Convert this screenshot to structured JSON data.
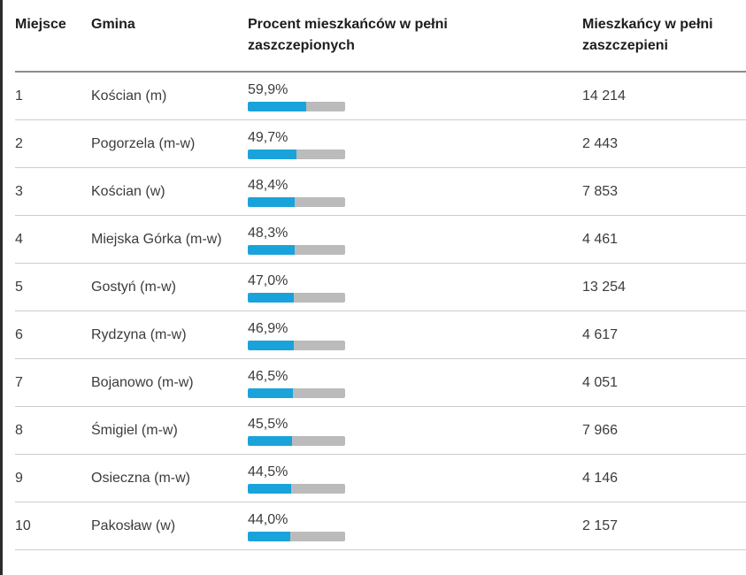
{
  "colors": {
    "bar_fill": "#1AA3DB",
    "bar_track": "#BBBBBB",
    "header_text": "#1D1D1D",
    "body_text": "#3C3C3C",
    "header_divider": "#8C8C8C",
    "row_divider": "#CCCCCC",
    "left_edge": "#2B2B2B"
  },
  "table": {
    "columns": [
      {
        "key": "miejsce",
        "label": "Miejsce"
      },
      {
        "key": "gmina",
        "label": "Gmina"
      },
      {
        "key": "procent",
        "label": "Procent mieszkańców w pełni zaszczepionych"
      },
      {
        "key": "mieszkancy",
        "label": "Mieszkańcy w pełni zaszczepieni"
      }
    ],
    "rows": [
      {
        "miejsce": "1",
        "gmina": "Kościan (m)",
        "procent_label": "59,9%",
        "procent_value": 59.9,
        "mieszkancy": "14 214"
      },
      {
        "miejsce": "2",
        "gmina": "Pogorzela (m-w)",
        "procent_label": "49,7%",
        "procent_value": 49.7,
        "mieszkancy": "2 443"
      },
      {
        "miejsce": "3",
        "gmina": "Kościan (w)",
        "procent_label": "48,4%",
        "procent_value": 48.4,
        "mieszkancy": "7 853"
      },
      {
        "miejsce": "4",
        "gmina": "Miejska Górka (m-w)",
        "procent_label": "48,3%",
        "procent_value": 48.3,
        "mieszkancy": "4 461"
      },
      {
        "miejsce": "5",
        "gmina": "Gostyń (m-w)",
        "procent_label": "47,0%",
        "procent_value": 47.0,
        "mieszkancy": "13 254"
      },
      {
        "miejsce": "6",
        "gmina": "Rydzyna (m-w)",
        "procent_label": "46,9%",
        "procent_value": 46.9,
        "mieszkancy": "4 617"
      },
      {
        "miejsce": "7",
        "gmina": "Bojanowo (m-w)",
        "procent_label": "46,5%",
        "procent_value": 46.5,
        "mieszkancy": "4 051"
      },
      {
        "miejsce": "8",
        "gmina": "Śmigiel (m-w)",
        "procent_label": "45,5%",
        "procent_value": 45.5,
        "mieszkancy": "7 966"
      },
      {
        "miejsce": "9",
        "gmina": "Osieczna (m-w)",
        "procent_label": "44,5%",
        "procent_value": 44.5,
        "mieszkancy": "4 146"
      },
      {
        "miejsce": "10",
        "gmina": "Pakosław (w)",
        "procent_label": "44,0%",
        "procent_value": 44.0,
        "mieszkancy": "2 157"
      }
    ]
  },
  "chart_data": {
    "type": "table",
    "columns": [
      "Miejsce",
      "Gmina",
      "Procent mieszkańców w pełni zaszczepionych",
      "Mieszkańcy w pełni zaszczepieni"
    ],
    "rows": [
      [
        1,
        "Kościan (m)",
        59.9,
        14214
      ],
      [
        2,
        "Pogorzela (m-w)",
        49.7,
        2443
      ],
      [
        3,
        "Kościan (w)",
        48.4,
        7853
      ],
      [
        4,
        "Miejska Górka (m-w)",
        48.3,
        4461
      ],
      [
        5,
        "Gostyń (m-w)",
        47.0,
        13254
      ],
      [
        6,
        "Rydzyna (m-w)",
        46.9,
        4617
      ],
      [
        7,
        "Bojanowo (m-w)",
        46.5,
        4051
      ],
      [
        8,
        "Śmigiel (m-w)",
        45.5,
        7966
      ],
      [
        9,
        "Osieczna (m-w)",
        44.5,
        4146
      ],
      [
        10,
        "Pakosław (w)",
        44.0,
        2157
      ]
    ],
    "bar_column": "Procent mieszkańców w pełni zaszczepionych",
    "bar_scale": [
      0,
      100
    ],
    "value_format": "percent-comma-decimal"
  }
}
